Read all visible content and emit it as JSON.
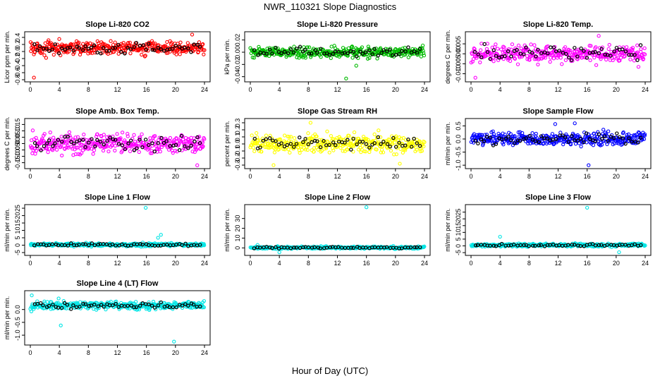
{
  "figure": {
    "title": "NWR_110321  Slope Diagnostics",
    "xlabel": "Hour of Day (UTC)"
  },
  "chart_data": [
    {
      "type": "scatter",
      "title": "Slope Li-820 CO2",
      "ylabel": "Licor ppm per min.",
      "xlim": [
        0,
        24
      ],
      "ylim": [
        -0.8,
        0.5
      ],
      "xticks": [
        0,
        4,
        8,
        12,
        16,
        20,
        24
      ],
      "yticks": [
        -0.8,
        -0.6,
        -0.4,
        -0.2,
        0.0,
        0.2,
        0.4
      ],
      "yticklabels": [
        "-0.8",
        "-0.6",
        "-0.4",
        "-0.2",
        "0.0",
        "0.2",
        "0.4"
      ],
      "color": "#ff0000",
      "mean": 0.1,
      "spread": 0.13,
      "outliers": [
        [
          0.5,
          -0.74
        ],
        [
          22.3,
          0.48
        ]
      ]
    },
    {
      "type": "scatter",
      "title": "Slope Li-820 Pressure",
      "ylabel": "kPa per min.",
      "xlim": [
        0,
        24
      ],
      "ylim": [
        -0.045,
        0.03
      ],
      "xticks": [
        0,
        4,
        8,
        12,
        16,
        20,
        24
      ],
      "yticks": [
        -0.04,
        -0.02,
        0.0,
        0.02
      ],
      "yticklabels": [
        "-0.04",
        "-0.02",
        "0.00",
        "0.02"
      ],
      "color": "#00bb00",
      "mean": 0.0,
      "spread": 0.006,
      "outliers": [
        [
          13.2,
          -0.043
        ],
        [
          14.6,
          -0.022
        ]
      ]
    },
    {
      "type": "scatter",
      "title": "Slope Li-820 Temp.",
      "ylabel": "degrees C per min.",
      "xlim": [
        0,
        24
      ],
      "ylim": [
        -0.013,
        0.01
      ],
      "xticks": [
        0,
        4,
        8,
        12,
        16,
        20,
        24
      ],
      "yticks": [
        -0.01,
        -0.005,
        0.0,
        0.005
      ],
      "yticklabels": [
        "-0.010",
        "-0.005",
        "0.000",
        "0.005"
      ],
      "color": "#ff00ff",
      "mean": 0.0,
      "spread": 0.003,
      "outliers": [
        [
          0.6,
          -0.012
        ],
        [
          17.6,
          0.009
        ]
      ]
    },
    {
      "type": "scatter",
      "title": "Slope Amb. Box Temp.",
      "ylabel": "degrees C per min.",
      "xlim": [
        0,
        24
      ],
      "ylim": [
        -0.18,
        0.18
      ],
      "xticks": [
        0,
        4,
        8,
        12,
        16,
        20,
        24
      ],
      "yticks": [
        -0.15,
        -0.1,
        -0.05,
        0.0,
        0.05,
        0.1,
        0.15
      ],
      "yticklabels": [
        "-0.15",
        "-0.10",
        "-0.05",
        "0.00",
        "0.05",
        "0.10",
        "0.15"
      ],
      "color": "#ff00ff",
      "mean": 0.0,
      "spread": 0.05,
      "outliers": [
        [
          23.0,
          -0.17
        ]
      ]
    },
    {
      "type": "scatter",
      "title": "Slope Gas Stream RH",
      "ylabel": "percent per min.",
      "xlim": [
        0,
        24
      ],
      "ylim": [
        -0.32,
        0.33
      ],
      "xticks": [
        0,
        4,
        8,
        12,
        16,
        20,
        24
      ],
      "yticks": [
        -0.3,
        -0.2,
        -0.1,
        0.0,
        0.1,
        0.2,
        0.3
      ],
      "yticklabels": [
        "-0.3",
        "-0.2",
        "-0.1",
        "0.0",
        "0.1",
        "0.2",
        "0.3"
      ],
      "color": "#ffff00",
      "mean": 0.0,
      "spread": 0.09,
      "outliers": [
        [
          3.2,
          -0.3
        ],
        [
          20.6,
          -0.28
        ],
        [
          8.3,
          0.3
        ]
      ]
    },
    {
      "type": "scatter",
      "title": "Slope Sample Flow",
      "ylabel": "ml/min per min.",
      "xlim": [
        0,
        24
      ],
      "ylim": [
        -1.05,
        0.7
      ],
      "xticks": [
        0,
        4,
        8,
        12,
        16,
        20,
        24
      ],
      "yticks": [
        -1.0,
        -0.5,
        0.0,
        0.5
      ],
      "yticklabels": [
        "-1.0",
        "-0.5",
        "0.0",
        "0.5"
      ],
      "color": "#0000ff",
      "mean": 0.0,
      "spread": 0.17,
      "outliers": [
        [
          16.2,
          -1.0
        ],
        [
          14.3,
          0.6
        ],
        [
          11.6,
          0.57
        ]
      ]
    },
    {
      "type": "scatter",
      "title": "Slope Line 1 Flow",
      "ylabel": "ml/min per min.",
      "xlim": [
        0,
        24
      ],
      "ylim": [
        -5.5,
        26
      ],
      "xticks": [
        0,
        4,
        8,
        12,
        16,
        20,
        24
      ],
      "yticks": [
        -5,
        0,
        5,
        10,
        15,
        20,
        25
      ],
      "yticklabels": [
        "-5",
        "0",
        "5",
        "10",
        "15",
        "20",
        "25"
      ],
      "color": "#00e5e5",
      "mean": 0.3,
      "spread": 0.7,
      "outliers": [
        [
          15.9,
          25.3
        ],
        [
          18.0,
          7.0
        ],
        [
          17.6,
          5.0
        ]
      ]
    },
    {
      "type": "scatter",
      "title": "Slope Line 2 Flow",
      "ylabel": "ml/min per min.",
      "xlim": [
        0,
        24
      ],
      "ylim": [
        -5.5,
        42
      ],
      "xticks": [
        0,
        4,
        8,
        12,
        16,
        20,
        24
      ],
      "yticks": [
        0,
        10,
        20,
        30
      ],
      "yticklabels": [
        "0",
        "10",
        "20",
        "30"
      ],
      "color": "#00e5e5",
      "mean": 0.3,
      "spread": 0.8,
      "outliers": [
        [
          16.0,
          41.5
        ],
        [
          4.0,
          -4.5
        ],
        [
          1.0,
          3.0
        ]
      ]
    },
    {
      "type": "scatter",
      "title": "Slope Line 3 Flow",
      "ylabel": "ml/min per min.",
      "xlim": [
        0,
        24
      ],
      "ylim": [
        -5.5,
        29
      ],
      "xticks": [
        0,
        4,
        8,
        12,
        16,
        20,
        24
      ],
      "yticks": [
        -5,
        0,
        5,
        10,
        15,
        20,
        25
      ],
      "yticklabels": [
        "-5",
        "0",
        "5",
        "10",
        "15",
        "20",
        "25"
      ],
      "color": "#00e5e5",
      "mean": 0.5,
      "spread": 0.8,
      "outliers": [
        [
          16.0,
          28.3
        ],
        [
          4.0,
          6.8
        ],
        [
          20.4,
          -4.7
        ]
      ]
    },
    {
      "type": "scatter",
      "title": "Slope Line 4 (LT) Flow",
      "ylabel": "ml/min per min.",
      "xlim": [
        0,
        24
      ],
      "ylim": [
        -1.3,
        0.65
      ],
      "xticks": [
        0,
        4,
        8,
        12,
        16,
        20,
        24
      ],
      "yticks": [
        -1.0,
        -0.5,
        0.0
      ],
      "yticklabels": [
        "-1.0",
        "-0.5",
        "0.0"
      ],
      "color": "#00e5e5",
      "mean": 0.15,
      "spread": 0.1,
      "outliers": [
        [
          4.2,
          -0.62
        ],
        [
          19.8,
          -1.25
        ],
        [
          0.2,
          0.55
        ],
        [
          3.9,
          0.43
        ]
      ]
    }
  ]
}
